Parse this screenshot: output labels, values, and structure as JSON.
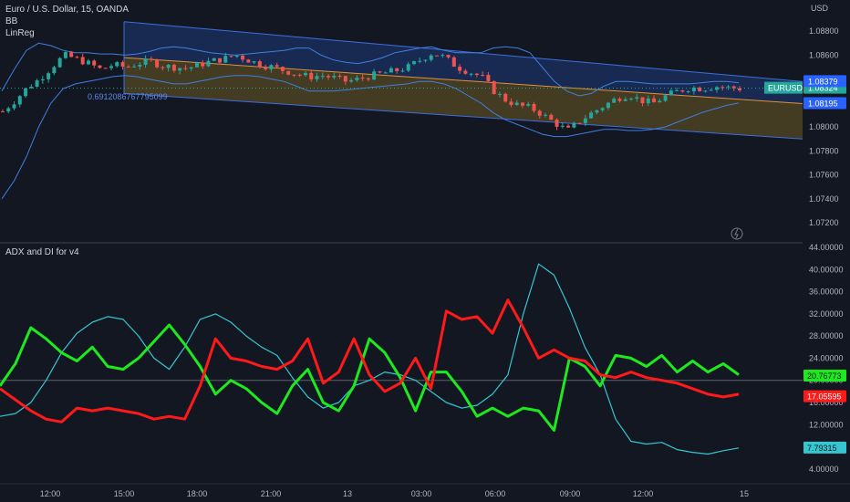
{
  "header": {
    "symbol_title": "Euro / U.S. Dollar, 15, OANDA",
    "indicator_bb": "BB",
    "indicator_linreg": "LinReg",
    "currency": "USD",
    "lower_title": "ADX and DI for v4"
  },
  "linreg_value": "0.6912086767795099",
  "colors": {
    "background": "#131722",
    "up_candle": "#26a69a",
    "down_candle": "#ef5350",
    "bollinger": "#3f7fe0",
    "channel_upper_fill": "#1f3a7a",
    "channel_lower_fill": "#6b5a22",
    "linreg_mid": "#e0913a",
    "adx": "#35c6d0",
    "di_plus": "#1ee81e",
    "di_minus": "#ff1a1a"
  },
  "chart_data": [
    {
      "type": "candlestick",
      "title": "Euro / U.S. Dollar, 15, OANDA",
      "y_unit": "USD",
      "ylim": [
        1.072,
        1.09
      ],
      "y_ticks": [
        "1.08800",
        "1.08600",
        "1.08400",
        "1.08200",
        "1.08000",
        "1.07800",
        "1.07600",
        "1.07400",
        "1.07200"
      ],
      "x_ticks": [
        "12:00",
        "15:00",
        "18:00",
        "21:00",
        "13",
        "03:00",
        "06:00",
        "09:00",
        "12:00",
        "15"
      ],
      "price_labels": [
        {
          "name": "EURUSD",
          "value": "1.08324",
          "color": "#26a69a"
        },
        {
          "name": "",
          "value": "1.08379",
          "color": "#2962ff"
        },
        {
          "name": "",
          "value": "1.08195",
          "color": "#2962ff"
        }
      ],
      "close_path": [
        1.0813,
        1.0822,
        1.0833,
        1.084,
        1.085,
        1.086,
        1.0857,
        1.0853,
        1.0848,
        1.0852,
        1.085,
        1.0853,
        1.0855,
        1.0851,
        1.085,
        1.0849,
        1.0852,
        1.0855,
        1.0857,
        1.086,
        1.0856,
        1.0852,
        1.085,
        1.0847,
        1.0844,
        1.0842,
        1.0843,
        1.0841,
        1.0838,
        1.084,
        1.0843,
        1.0845,
        1.0847,
        1.085,
        1.0856,
        1.0862,
        1.0858,
        1.085,
        1.0846,
        1.0842,
        1.083,
        1.0822,
        1.0818,
        1.0816,
        1.081,
        1.0803,
        1.0797,
        1.0805,
        1.0812,
        1.0818,
        1.0824,
        1.0827,
        1.0822,
        1.082,
        1.0826,
        1.083,
        1.0833,
        1.0832,
        1.0834,
        1.0833,
        1.0832
      ],
      "bb_upper": [
        1.083,
        1.0848,
        1.0864,
        1.087,
        1.0868,
        1.0864,
        1.0862,
        1.0862,
        1.0861,
        1.0861,
        1.086,
        1.0861,
        1.0863,
        1.0866,
        1.0867,
        1.0866,
        1.0864,
        1.0862,
        1.0861,
        1.086,
        1.0861,
        1.0862,
        1.0863,
        1.0864,
        1.0866,
        1.0866,
        1.086,
        1.0856,
        1.0854,
        1.0853,
        1.0855,
        1.0858,
        1.0862,
        1.0864,
        1.0866,
        1.0867,
        1.0864,
        1.0862,
        1.0862,
        1.0862,
        1.0866,
        1.0867,
        1.0866,
        1.0862,
        1.085,
        1.0838,
        1.083,
        1.0826,
        1.0828,
        1.0834,
        1.0838,
        1.0838,
        1.0837,
        1.0836,
        1.0836,
        1.0836,
        1.0836,
        1.0837,
        1.0838,
        1.0838,
        1.0837
      ],
      "bb_lower": [
        1.074,
        1.0755,
        1.0775,
        1.08,
        1.082,
        1.0832,
        1.0836,
        1.0838,
        1.084,
        1.0842,
        1.0843,
        1.0842,
        1.084,
        1.0838,
        1.0836,
        1.0836,
        1.0838,
        1.084,
        1.0842,
        1.0843,
        1.0843,
        1.0842,
        1.084,
        1.0838,
        1.0834,
        1.083,
        1.083,
        1.083,
        1.0831,
        1.0832,
        1.0833,
        1.0834,
        1.0835,
        1.0836,
        1.0838,
        1.0838,
        1.0836,
        1.0832,
        1.0826,
        1.082,
        1.0812,
        1.0806,
        1.0802,
        1.0798,
        1.0794,
        1.0792,
        1.0792,
        1.0794,
        1.0796,
        1.0798,
        1.0798,
        1.0797,
        1.0797,
        1.0798,
        1.08,
        1.0804,
        1.0808,
        1.0812,
        1.0815,
        1.0818,
        1.082
      ],
      "channel": {
        "upper_start": 1.0888,
        "upper_end": 1.08379,
        "mid_start": 1.0858,
        "mid_end": 1.08195,
        "lower_start": 1.0828,
        "lower_end": 1.079
      }
    },
    {
      "type": "line",
      "title": "ADX and DI for v4",
      "ylim": [
        2,
        44
      ],
      "y_ticks": [
        "44.00000",
        "40.00000",
        "36.00000",
        "32.00000",
        "28.00000",
        "24.00000",
        "20.00000",
        "16.00000",
        "12.00000",
        "8.00000",
        "4.00000"
      ],
      "threshold": 20,
      "series": [
        {
          "name": "",
          "color": "#35c6d0",
          "last_label": "7.79315",
          "values": [
            13.5,
            14.0,
            16.0,
            20.0,
            25.0,
            28.5,
            30.5,
            31.5,
            31.0,
            28.0,
            24.0,
            22.0,
            26.0,
            31.0,
            32.0,
            30.5,
            28.0,
            26.0,
            24.5,
            20.5,
            17.0,
            15.0,
            16.0,
            19.0,
            20.0,
            21.5,
            21.0,
            20.0,
            18.0,
            16.0,
            15.0,
            15.5,
            17.5,
            21.0,
            32.0,
            41.0,
            39.0,
            33.0,
            26.0,
            21.0,
            13.0,
            9.0,
            8.5,
            8.8,
            7.5,
            7.0,
            6.7,
            7.3,
            7.8
          ]
        },
        {
          "name": "",
          "color": "#1ee81e",
          "last_label": "20.76773",
          "values": [
            19.0,
            23.0,
            29.5,
            27.5,
            25.0,
            23.5,
            26.0,
            22.5,
            22.0,
            24.0,
            27.0,
            30.0,
            26.5,
            22.5,
            17.5,
            20.0,
            18.5,
            16.0,
            14.0,
            19.0,
            22.0,
            16.0,
            14.5,
            19.0,
            27.5,
            25.0,
            20.5,
            14.5,
            21.5,
            21.5,
            18.0,
            13.5,
            15.0,
            13.5,
            15.0,
            14.5,
            11.0,
            24.0,
            22.5,
            19.0,
            24.5,
            24.0,
            22.5,
            24.5,
            21.5,
            23.5,
            21.5,
            23.0,
            21.0
          ]
        },
        {
          "name": "",
          "color": "#ff1a1a",
          "last_label": "17.05595",
          "values": [
            18.5,
            16.5,
            14.5,
            13.0,
            12.5,
            15.0,
            14.5,
            15.0,
            14.5,
            14.0,
            13.0,
            13.5,
            13.0,
            19.0,
            27.5,
            24.0,
            23.5,
            22.5,
            22.0,
            23.5,
            27.5,
            19.5,
            21.5,
            27.5,
            21.0,
            18.0,
            19.5,
            24.0,
            18.5,
            32.5,
            31.0,
            31.5,
            28.5,
            34.5,
            29.5,
            24.0,
            25.5,
            24.0,
            23.5,
            21.0,
            20.5,
            21.5,
            20.5,
            20.0,
            19.5,
            18.5,
            17.5,
            17.0,
            17.5
          ]
        }
      ]
    }
  ]
}
